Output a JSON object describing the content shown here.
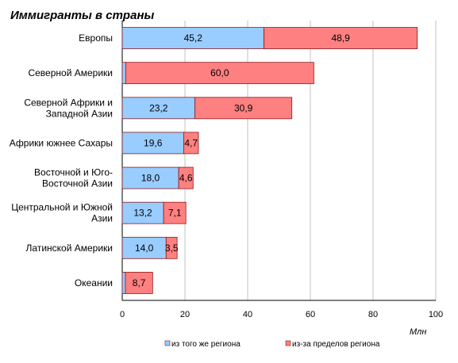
{
  "chart_data": {
    "type": "bar",
    "orientation": "horizontal",
    "stacked": true,
    "title": "Иммигранты в страны",
    "unit_label": "Млн",
    "categories": [
      [
        "Европы"
      ],
      [
        "Северной Америки"
      ],
      [
        "Северной Африки и",
        "Западной Азии"
      ],
      [
        "Африки южнее Сахары"
      ],
      [
        "Восточной и Юго-",
        "Восточной Азии"
      ],
      [
        "Центральной и Южной",
        "Азии"
      ],
      [
        "Латинской Америки"
      ],
      [
        "Океании"
      ]
    ],
    "series": [
      {
        "name": "из того же региона",
        "color": "#99ccff",
        "values": [
          45.2,
          1.1,
          23.2,
          19.6,
          18.0,
          13.2,
          14.0,
          1.0
        ],
        "labels": [
          "45,2",
          "",
          "23,2",
          "19,6",
          "18,0",
          "13,2",
          "14,0",
          ""
        ]
      },
      {
        "name": "из-за пределов региона",
        "color": "#ff8080",
        "values": [
          48.9,
          60.0,
          30.9,
          4.7,
          4.6,
          7.1,
          3.5,
          8.7
        ],
        "labels": [
          "48,9",
          "60,0",
          "30,9",
          "4,7",
          "4,6",
          "7,1",
          "3,5",
          "8,7"
        ]
      }
    ],
    "xlim": [
      0,
      100
    ],
    "xticks": [
      0,
      20,
      40,
      60,
      80,
      100
    ],
    "grid": true,
    "legend_position": "bottom"
  }
}
